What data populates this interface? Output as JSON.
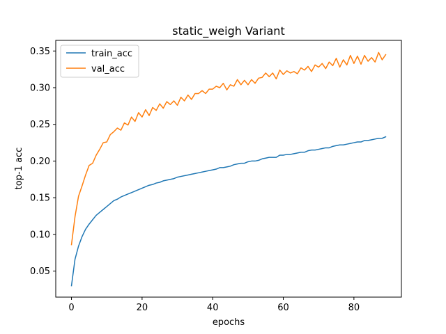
{
  "chart_data": {
    "type": "line",
    "title": "static_weigh Variant",
    "xlabel": "epochs",
    "ylabel": "top-1 acc",
    "xlim": [
      -4.45,
      93.45
    ],
    "ylim": [
      0.0145,
      0.3645
    ],
    "xticks": [
      0,
      20,
      40,
      60,
      80
    ],
    "xtick_labels": [
      "0",
      "20",
      "40",
      "60",
      "80"
    ],
    "yticks": [
      0.05,
      0.1,
      0.15,
      0.2,
      0.25,
      0.3,
      0.35
    ],
    "ytick_labels": [
      "0.05",
      "0.10",
      "0.15",
      "0.20",
      "0.25",
      "0.30",
      "0.35"
    ],
    "grid": false,
    "legend": "top-left",
    "series": [
      {
        "name": "train_acc",
        "color": "#1f77b4",
        "x": [
          0,
          1,
          2,
          3,
          4,
          5,
          6,
          7,
          8,
          9,
          10,
          11,
          12,
          13,
          14,
          15,
          16,
          17,
          18,
          19,
          20,
          21,
          22,
          23,
          24,
          25,
          26,
          27,
          28,
          29,
          30,
          31,
          32,
          33,
          34,
          35,
          36,
          37,
          38,
          39,
          40,
          41,
          42,
          43,
          44,
          45,
          46,
          47,
          48,
          49,
          50,
          51,
          52,
          53,
          54,
          55,
          56,
          57,
          58,
          59,
          60,
          61,
          62,
          63,
          64,
          65,
          66,
          67,
          68,
          69,
          70,
          71,
          72,
          73,
          74,
          75,
          76,
          77,
          78,
          79,
          80,
          81,
          82,
          83,
          84,
          85,
          86,
          87,
          88,
          89
        ],
        "values": [
          0.03,
          0.066,
          0.084,
          0.097,
          0.107,
          0.114,
          0.12,
          0.126,
          0.13,
          0.134,
          0.138,
          0.142,
          0.146,
          0.148,
          0.151,
          0.153,
          0.155,
          0.157,
          0.159,
          0.161,
          0.163,
          0.165,
          0.167,
          0.168,
          0.17,
          0.171,
          0.173,
          0.174,
          0.175,
          0.176,
          0.178,
          0.179,
          0.18,
          0.181,
          0.182,
          0.183,
          0.184,
          0.185,
          0.186,
          0.187,
          0.188,
          0.189,
          0.191,
          0.191,
          0.192,
          0.193,
          0.195,
          0.196,
          0.197,
          0.197,
          0.199,
          0.2,
          0.2,
          0.201,
          0.203,
          0.204,
          0.205,
          0.205,
          0.205,
          0.208,
          0.208,
          0.209,
          0.209,
          0.21,
          0.211,
          0.212,
          0.212,
          0.214,
          0.215,
          0.215,
          0.216,
          0.217,
          0.218,
          0.218,
          0.22,
          0.221,
          0.222,
          0.222,
          0.223,
          0.224,
          0.225,
          0.226,
          0.226,
          0.228,
          0.228,
          0.229,
          0.23,
          0.231,
          0.231,
          0.233
        ]
      },
      {
        "name": "val_acc",
        "color": "#ff7f0e",
        "x": [
          0,
          1,
          2,
          3,
          4,
          5,
          6,
          7,
          8,
          9,
          10,
          11,
          12,
          13,
          14,
          15,
          16,
          17,
          18,
          19,
          20,
          21,
          22,
          23,
          24,
          25,
          26,
          27,
          28,
          29,
          30,
          31,
          32,
          33,
          34,
          35,
          36,
          37,
          38,
          39,
          40,
          41,
          42,
          43,
          44,
          45,
          46,
          47,
          48,
          49,
          50,
          51,
          52,
          53,
          54,
          55,
          56,
          57,
          58,
          59,
          60,
          61,
          62,
          63,
          64,
          65,
          66,
          67,
          68,
          69,
          70,
          71,
          72,
          73,
          74,
          75,
          76,
          77,
          78,
          79,
          80,
          81,
          82,
          83,
          84,
          85,
          86,
          87,
          88,
          89
        ],
        "values": [
          0.086,
          0.124,
          0.152,
          0.166,
          0.181,
          0.194,
          0.197,
          0.208,
          0.216,
          0.225,
          0.226,
          0.236,
          0.24,
          0.245,
          0.242,
          0.252,
          0.249,
          0.26,
          0.254,
          0.266,
          0.26,
          0.27,
          0.262,
          0.273,
          0.269,
          0.278,
          0.272,
          0.281,
          0.277,
          0.282,
          0.276,
          0.287,
          0.282,
          0.29,
          0.284,
          0.292,
          0.292,
          0.296,
          0.292,
          0.298,
          0.298,
          0.302,
          0.3,
          0.306,
          0.297,
          0.304,
          0.302,
          0.311,
          0.304,
          0.31,
          0.304,
          0.311,
          0.306,
          0.313,
          0.314,
          0.32,
          0.315,
          0.32,
          0.312,
          0.324,
          0.318,
          0.323,
          0.32,
          0.322,
          0.319,
          0.327,
          0.324,
          0.329,
          0.322,
          0.331,
          0.328,
          0.333,
          0.326,
          0.335,
          0.33,
          0.34,
          0.328,
          0.338,
          0.331,
          0.344,
          0.333,
          0.343,
          0.332,
          0.344,
          0.336,
          0.341,
          0.335,
          0.348,
          0.338,
          0.345
        ]
      }
    ]
  }
}
